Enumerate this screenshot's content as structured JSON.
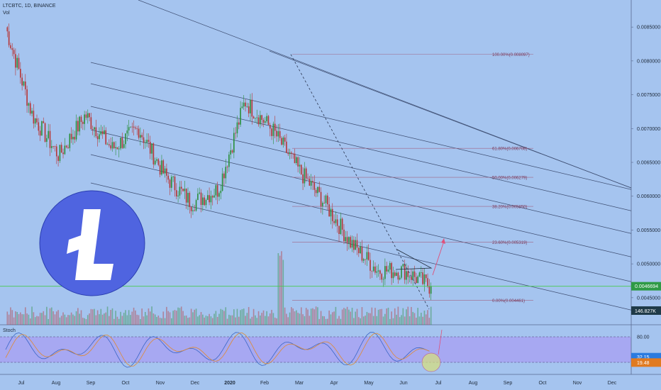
{
  "header": {
    "symbol_line": "LTCBTC, 1D, BINANCE",
    "volume_label": "Vol"
  },
  "colors": {
    "background": "#a5c4ef",
    "candle_up": "#2a8f3a",
    "candle_down": "#b73535",
    "price_line": "#46c94f",
    "fib_line": "#a06585",
    "channel_line": "#3f4f73",
    "stoch_band": "#a8a1f3",
    "stoch_k": "#3b66c6",
    "stoch_d": "#e08a32",
    "logo": "#4f64e0",
    "arrow": "#e0507a"
  },
  "chart_data": {
    "type": "candlestick",
    "price_axis": {
      "range": [
        0.0041,
        0.0089
      ],
      "ticks": [
        "0.0085000",
        "0.0080000",
        "0.0075000",
        "0.0070000",
        "0.0065000",
        "0.0060000",
        "0.0055000",
        "0.0050000",
        "0.0045000"
      ],
      "current_price_label": "0.0046694",
      "current_price": 0.0046694,
      "volume_label": "146.827K"
    },
    "time_axis": {
      "ticks": [
        "Jul",
        "Aug",
        "Sep",
        "Oct",
        "Nov",
        "Dec",
        "2020",
        "Feb",
        "Mar",
        "Apr",
        "May",
        "Jun",
        "Jul",
        "Aug",
        "Sep",
        "Oct",
        "Nov",
        "Dec"
      ],
      "bold_tick": "2020"
    },
    "price_path": [
      [
        0.0085,
        0.0087
      ],
      [
        0.0072,
        0.0076
      ],
      [
        0.0066,
        0.0063
      ],
      [
        0.0072,
        0.0068
      ],
      [
        0.0067,
        0.0064
      ],
      [
        0.007,
        0.0066
      ],
      [
        0.0063,
        0.0061
      ],
      [
        0.0059,
        0.0056
      ],
      [
        0.0061,
        0.0066
      ],
      [
        0.0074,
        0.008
      ],
      [
        0.007,
        0.0067
      ],
      [
        0.0064,
        0.0063
      ],
      [
        0.0059,
        0.0058
      ],
      [
        0.0053,
        0.0049
      ],
      [
        0.0049,
        0.0047
      ],
      [
        0.0049,
        0.0048
      ],
      [
        0.00466,
        0.00467
      ]
    ],
    "fibonacci": {
      "levels": [
        {
          "label": "100.00%(0.008097)",
          "price": 0.008097
        },
        {
          "label": "61.80%(0.006708)",
          "price": 0.006708
        },
        {
          "label": "50.00%(0.006279)",
          "price": 0.006279
        },
        {
          "label": "38.20%(0.005850)",
          "price": 0.00585
        },
        {
          "label": "23.60%(0.005319)",
          "price": 0.005319
        },
        {
          "label": "0.00%(0.004461)",
          "price": 0.004461
        }
      ]
    },
    "stochastic": {
      "label": "Stoch",
      "ticks": [
        "80.00",
        "20.00"
      ],
      "upper": 80,
      "lower": 20,
      "k_label": "32.15",
      "d_label": "19.48",
      "k_value": 32.15,
      "d_value": 19.48
    }
  }
}
